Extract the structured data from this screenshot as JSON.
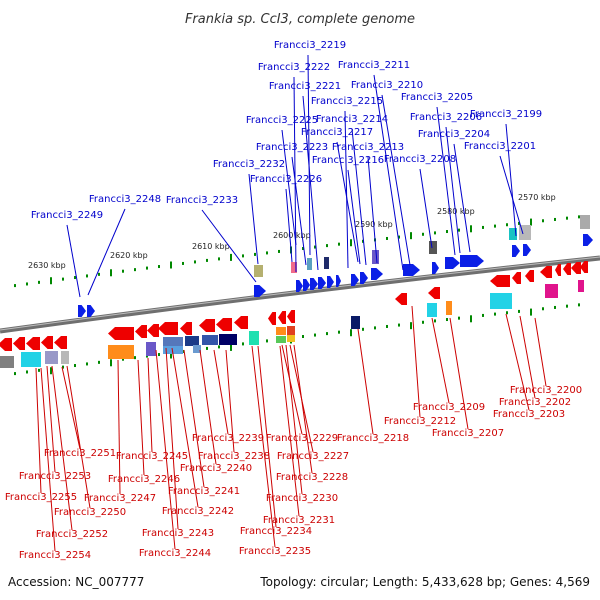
{
  "title": "Frankia sp. CcI3, complete genome",
  "footer": {
    "accession": "Accession: NC_007777",
    "summary": "Topology: circular; Length: 5,433,628 bp; Genes: 4,569"
  },
  "colors": {
    "forward_label": "#0000cc",
    "reverse_label": "#cc0000",
    "forward_gene": "#0b1fe6",
    "reverse_gene": "#ee0000",
    "backbone": "#808080",
    "tick": "#008800"
  },
  "scale": {
    "labels": [
      "2630 kbp",
      "2620 kbp",
      "2610 kbp",
      "2600 kbp",
      "2590 kbp",
      "2580 kbp",
      "2570 kbp"
    ]
  },
  "forward_genes": [
    {
      "id": "Francci3_2219"
    },
    {
      "id": "Francci3_2222"
    },
    {
      "id": "Francci3_2211"
    },
    {
      "id": "Francci3_2221"
    },
    {
      "id": "Francci3_2210"
    },
    {
      "id": "Francci3_2215"
    },
    {
      "id": "Francci3_2205"
    },
    {
      "id": "Francci3_2225"
    },
    {
      "id": "Francci3_2214"
    },
    {
      "id": "Francci3_2206"
    },
    {
      "id": "Francci3_2199"
    },
    {
      "id": "Francci3_2217"
    },
    {
      "id": "Francci3_2204"
    },
    {
      "id": "Francci3_2223"
    },
    {
      "id": "Francci3_2213"
    },
    {
      "id": "Francci3_2201"
    },
    {
      "id": "Francci3_2216"
    },
    {
      "id": "Francci3_2208"
    },
    {
      "id": "Francci3_2232"
    },
    {
      "id": "Francci3_2226"
    },
    {
      "id": "Francci3_2248"
    },
    {
      "id": "Francci3_2233"
    },
    {
      "id": "Francci3_2249"
    }
  ],
  "reverse_genes": [
    {
      "id": "Francci3_2200"
    },
    {
      "id": "Francci3_2202"
    },
    {
      "id": "Francci3_2209"
    },
    {
      "id": "Francci3_2203"
    },
    {
      "id": "Francci3_2212"
    },
    {
      "id": "Francci3_2207"
    },
    {
      "id": "Francci3_2218"
    },
    {
      "id": "Francci3_2239"
    },
    {
      "id": "Francci3_2229"
    },
    {
      "id": "Francci3_2251"
    },
    {
      "id": "Francci3_2245"
    },
    {
      "id": "Francci3_2238"
    },
    {
      "id": "Francci3_2227"
    },
    {
      "id": "Francci3_2240"
    },
    {
      "id": "Francci3_2253"
    },
    {
      "id": "Francci3_2246"
    },
    {
      "id": "Francci3_2228"
    },
    {
      "id": "Francci3_2241"
    },
    {
      "id": "Francci3_2255"
    },
    {
      "id": "Francci3_2247"
    },
    {
      "id": "Francci3_2230"
    },
    {
      "id": "Francci3_2250"
    },
    {
      "id": "Francci3_2242"
    },
    {
      "id": "Francci3_2231"
    },
    {
      "id": "Francci3_2252"
    },
    {
      "id": "Francci3_2243"
    },
    {
      "id": "Francci3_2234"
    },
    {
      "id": "Francci3_2254"
    },
    {
      "id": "Francci3_2244"
    },
    {
      "id": "Francci3_2235"
    }
  ]
}
